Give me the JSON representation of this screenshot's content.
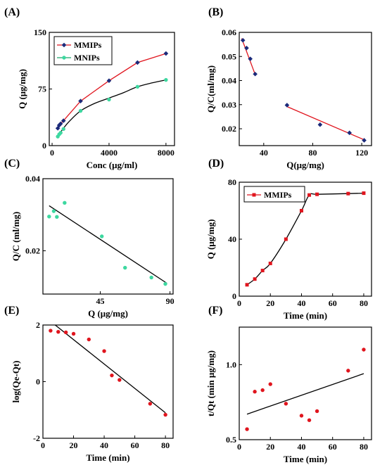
{
  "chart_data": [
    {
      "panel": "(A)",
      "type": "line",
      "xlabel": "Conc (μg/ml)",
      "ylabel": "Q (μg/mg)",
      "xlim": [
        -200,
        8600
      ],
      "ylim": [
        0,
        150
      ],
      "xticks": [
        0,
        4000,
        8000
      ],
      "xtick_labels": [
        "0",
        "4000",
        "8000"
      ],
      "yticks": [
        0,
        75,
        150
      ],
      "ytick_labels": [
        "0",
        "75",
        "150"
      ],
      "legend": "top-left",
      "series": [
        {
          "name": "MMIPs",
          "color": "#e0151e",
          "marker": "diamond",
          "marker_color": "#1b2a7a",
          "x": [
            400,
            500,
            600,
            800,
            2000,
            4000,
            6000,
            8000
          ],
          "y": [
            23,
            27,
            29,
            33,
            59,
            86,
            110,
            122
          ],
          "fit": {
            "style": "connect",
            "color": "#e0151e"
          }
        },
        {
          "name": "MNIPs",
          "color": "#1aa86b",
          "marker": "circle",
          "marker_color": "#3dd8a0",
          "x": [
            400,
            500,
            600,
            800,
            2000,
            4000,
            6000,
            8000
          ],
          "y": [
            12,
            15,
            17,
            22,
            46,
            61,
            78,
            87
          ],
          "fit": {
            "style": "curve",
            "color": "#000000",
            "x": [
              400,
              500,
              600,
              800,
              1200,
              2000,
              3000,
              4000,
              5000,
              6000,
              7000,
              8000
            ],
            "y": [
              13,
              16,
              18,
              23,
              32,
              46,
              56,
              63,
              70,
              78,
              83,
              87
            ]
          }
        }
      ]
    },
    {
      "panel": "(B)",
      "type": "scatter",
      "xlabel": "Q(μg/mg)",
      "ylabel": "Q/C(ml/mg)",
      "xlim": [
        20,
        128
      ],
      "ylim": [
        0.013,
        0.06
      ],
      "xticks": [
        40,
        80,
        120
      ],
      "xtick_labels": [
        "40",
        "80",
        "120"
      ],
      "yticks": [
        0.02,
        0.03,
        0.04,
        0.05,
        0.06
      ],
      "ytick_labels": [
        "0.02",
        "0.03",
        "0.04",
        "0.05",
        "0.06"
      ],
      "series": [
        {
          "color": "#1b2a7a",
          "marker": "diamond",
          "x": [
            23,
            26,
            29,
            33,
            59,
            86,
            110,
            122
          ],
          "y": [
            0.0567,
            0.0535,
            0.049,
            0.0427,
            0.0298,
            0.0217,
            0.0183,
            0.0152
          ]
        }
      ],
      "fit_lines": [
        {
          "color": "#e0151e",
          "x": [
            22,
            33
          ],
          "y": [
            0.0575,
            0.0425
          ]
        },
        {
          "color": "#e0151e",
          "x": [
            59,
            123
          ],
          "y": [
            0.0292,
            0.0152
          ]
        }
      ]
    },
    {
      "panel": "(C)",
      "type": "scatter",
      "xlabel": "Q (μg/mg)",
      "ylabel": "Q/C (ml/mg)",
      "xlim": [
        8,
        92
      ],
      "ylim": [
        0.008,
        0.04
      ],
      "xticks": [
        45,
        90
      ],
      "xtick_labels": [
        "45",
        "90"
      ],
      "yticks": [
        0.02,
        0.04
      ],
      "ytick_labels": [
        "0.02",
        "0.04"
      ],
      "series": [
        {
          "color": "#3dd8a0",
          "marker": "circle",
          "x": [
            12,
            15,
            17,
            22,
            46,
            61,
            78,
            87
          ],
          "y": [
            0.0295,
            0.031,
            0.0294,
            0.0333,
            0.024,
            0.0153,
            0.0126,
            0.0108
          ]
        }
      ],
      "fit_lines": [
        {
          "color": "#000000",
          "x": [
            12,
            88
          ],
          "y": [
            0.0325,
            0.011
          ]
        }
      ]
    },
    {
      "panel": "(D)",
      "type": "line",
      "xlabel": "Time (min)",
      "ylabel": "Q (μg/mg)",
      "xlim": [
        0,
        85
      ],
      "ylim": [
        0,
        80
      ],
      "xticks": [
        0,
        20,
        40,
        60,
        80
      ],
      "xtick_labels": [
        "0",
        "20",
        "40",
        "60",
        "80"
      ],
      "yticks": [
        0,
        40,
        80
      ],
      "ytick_labels": [
        "0",
        "40",
        "80"
      ],
      "legend": "top-left",
      "series": [
        {
          "name": "MMIPs",
          "color": "#e0151e",
          "marker": "square",
          "x": [
            5,
            10,
            15,
            20,
            30,
            40,
            45,
            50,
            70,
            80
          ],
          "y": [
            8,
            12,
            18,
            23,
            40,
            60,
            71,
            71.5,
            72,
            72.3
          ],
          "fit": {
            "style": "curve",
            "color": "#000000"
          }
        }
      ]
    },
    {
      "panel": "(E)",
      "type": "scatter",
      "xlabel": "Time (min)",
      "ylabel": "log(Qe-Qt)",
      "xlim": [
        0,
        85
      ],
      "ylim": [
        -2,
        2
      ],
      "xticks": [
        0,
        20,
        40,
        60,
        80
      ],
      "xtick_labels": [
        "0",
        "20",
        "40",
        "60",
        "80"
      ],
      "yticks": [
        -2,
        0,
        2
      ],
      "ytick_labels": [
        "-2",
        "0",
        "2"
      ],
      "series": [
        {
          "color": "#e0151e",
          "marker": "circle",
          "x": [
            5,
            10,
            15,
            20,
            30,
            40,
            45,
            50,
            70,
            80
          ],
          "y": [
            1.8,
            1.76,
            1.74,
            1.69,
            1.49,
            1.08,
            0.22,
            0.06,
            -0.78,
            -1.17
          ]
        }
      ],
      "fit_lines": [
        {
          "color": "#000000",
          "x": [
            8,
            80
          ],
          "y": [
            2.0,
            -1.1
          ]
        }
      ]
    },
    {
      "panel": "(F)",
      "type": "scatter",
      "xlabel": "Time (min)",
      "ylabel": "t/Qt (min μg/mg)",
      "xlim": [
        0,
        85
      ],
      "ylim": [
        0.5,
        1.25
      ],
      "xticks": [
        0,
        20,
        40,
        60,
        80
      ],
      "xtick_labels": [
        "0",
        "20",
        "40",
        "60",
        "80"
      ],
      "yticks": [
        0.5,
        1.0
      ],
      "ytick_labels": [
        "0.5",
        "1.0"
      ],
      "series": [
        {
          "color": "#e0151e",
          "marker": "circle",
          "x": [
            5,
            10,
            15,
            20,
            30,
            40,
            45,
            50,
            70,
            80
          ],
          "y": [
            0.57,
            0.82,
            0.83,
            0.87,
            0.74,
            0.66,
            0.63,
            0.69,
            0.96,
            1.1
          ]
        }
      ],
      "fit_lines": [
        {
          "color": "#000000",
          "x": [
            5,
            80
          ],
          "y": [
            0.67,
            0.94
          ]
        }
      ]
    }
  ]
}
